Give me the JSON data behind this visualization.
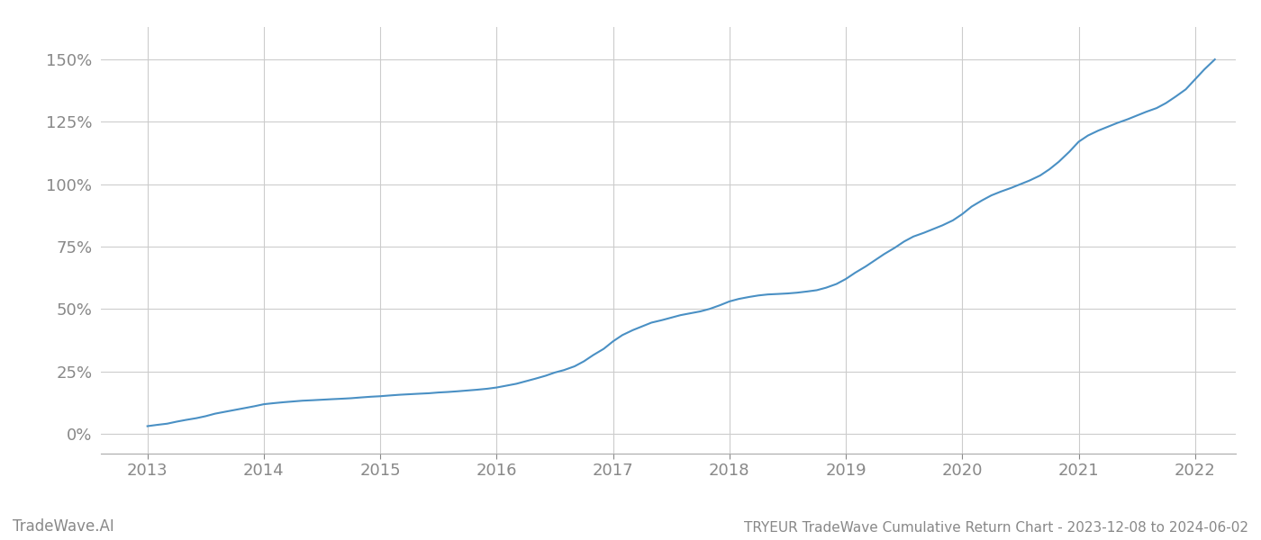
{
  "title": "TRYEUR TradeWave Cumulative Return Chart - 2023-12-08 to 2024-06-02",
  "watermark": "TradeWave.AI",
  "line_color": "#4a90c4",
  "background_color": "#ffffff",
  "grid_color": "#cccccc",
  "x_years": [
    2013,
    2014,
    2015,
    2016,
    2017,
    2018,
    2019,
    2020,
    2021,
    2022
  ],
  "y_ticks": [
    0,
    25,
    50,
    75,
    100,
    125,
    150
  ],
  "xlim": [
    2012.6,
    2022.35
  ],
  "ylim": [
    -8,
    163
  ],
  "data_x": [
    2013.0,
    2013.08,
    2013.17,
    2013.25,
    2013.33,
    2013.42,
    2013.5,
    2013.58,
    2013.67,
    2013.75,
    2013.83,
    2013.92,
    2014.0,
    2014.08,
    2014.17,
    2014.25,
    2014.33,
    2014.42,
    2014.5,
    2014.58,
    2014.67,
    2014.75,
    2014.83,
    2014.92,
    2015.0,
    2015.08,
    2015.17,
    2015.25,
    2015.33,
    2015.42,
    2015.5,
    2015.58,
    2015.67,
    2015.75,
    2015.83,
    2015.92,
    2016.0,
    2016.08,
    2016.17,
    2016.25,
    2016.33,
    2016.42,
    2016.5,
    2016.58,
    2016.67,
    2016.75,
    2016.83,
    2016.92,
    2017.0,
    2017.08,
    2017.17,
    2017.25,
    2017.33,
    2017.42,
    2017.5,
    2017.58,
    2017.67,
    2017.75,
    2017.83,
    2017.92,
    2018.0,
    2018.08,
    2018.17,
    2018.25,
    2018.33,
    2018.42,
    2018.5,
    2018.58,
    2018.67,
    2018.75,
    2018.83,
    2018.92,
    2019.0,
    2019.08,
    2019.17,
    2019.25,
    2019.33,
    2019.42,
    2019.5,
    2019.58,
    2019.67,
    2019.75,
    2019.83,
    2019.92,
    2020.0,
    2020.08,
    2020.17,
    2020.25,
    2020.33,
    2020.42,
    2020.5,
    2020.58,
    2020.67,
    2020.75,
    2020.83,
    2020.92,
    2021.0,
    2021.08,
    2021.17,
    2021.25,
    2021.33,
    2021.42,
    2021.5,
    2021.58,
    2021.67,
    2021.75,
    2021.83,
    2021.92,
    2022.0,
    2022.08,
    2022.17
  ],
  "data_y": [
    3.0,
    3.5,
    4.0,
    4.8,
    5.5,
    6.2,
    7.0,
    8.0,
    8.8,
    9.5,
    10.2,
    11.0,
    11.8,
    12.2,
    12.6,
    12.9,
    13.2,
    13.4,
    13.6,
    13.8,
    14.0,
    14.2,
    14.5,
    14.8,
    15.0,
    15.3,
    15.6,
    15.8,
    16.0,
    16.2,
    16.5,
    16.7,
    17.0,
    17.3,
    17.6,
    18.0,
    18.5,
    19.2,
    20.0,
    21.0,
    22.0,
    23.2,
    24.5,
    25.5,
    27.0,
    29.0,
    31.5,
    34.0,
    37.0,
    39.5,
    41.5,
    43.0,
    44.5,
    45.5,
    46.5,
    47.5,
    48.3,
    49.0,
    50.0,
    51.5,
    53.0,
    54.0,
    54.8,
    55.4,
    55.8,
    56.0,
    56.2,
    56.5,
    57.0,
    57.5,
    58.5,
    60.0,
    62.0,
    64.5,
    67.0,
    69.5,
    72.0,
    74.5,
    77.0,
    79.0,
    80.5,
    82.0,
    83.5,
    85.5,
    88.0,
    91.0,
    93.5,
    95.5,
    97.0,
    98.5,
    100.0,
    101.5,
    103.5,
    106.0,
    109.0,
    113.0,
    117.0,
    119.5,
    121.5,
    123.0,
    124.5,
    126.0,
    127.5,
    129.0,
    130.5,
    132.5,
    135.0,
    138.0,
    142.0,
    146.0,
    150.0
  ]
}
